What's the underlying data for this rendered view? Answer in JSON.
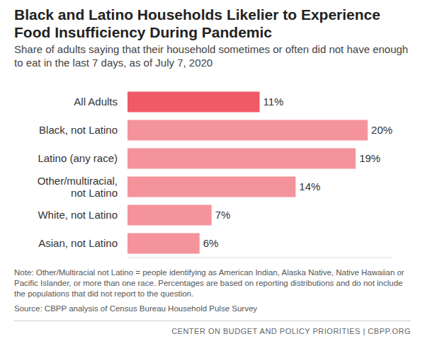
{
  "chart_data": {
    "type": "bar",
    "orientation": "horizontal",
    "title": "Black and Latino Households Likelier to Experience Food Insufficiency During Pandemic",
    "subtitle": "Share of adults saying that their household sometimes or often did not have enough to eat in the last 7 days, as of July 7, 2020",
    "categories": [
      "All Adults",
      "Black, not Latino",
      "Latino (any race)",
      "Other/multiracial, not Latino",
      "White, not Latino",
      "Asian, not Latino"
    ],
    "values": [
      11,
      20,
      19,
      14,
      7,
      6
    ],
    "value_labels": [
      "11%",
      "20%",
      "19%",
      "14%",
      "7%",
      "6%"
    ],
    "colors": [
      "#ef5a66",
      "#f4939b",
      "#f4939b",
      "#f4939b",
      "#f4939b",
      "#f4939b"
    ],
    "xlim": [
      0,
      22
    ],
    "data_labels": true,
    "tick_labels": "y",
    "grid": false,
    "note": "Note: Other/Multiracial not Latino = people identifying as American Indian, Alaska Native, Native Hawaiian or Pacific Islander, or more than one race. Percentages are based on reporting distributions and do not include the populations that did not report to the question.",
    "source": "Source: CBPP analysis of Census Bureau Household Pulse Survey",
    "credit": "CENTER ON BUDGET AND POLICY PRIORITIES | CBPP.ORG"
  }
}
